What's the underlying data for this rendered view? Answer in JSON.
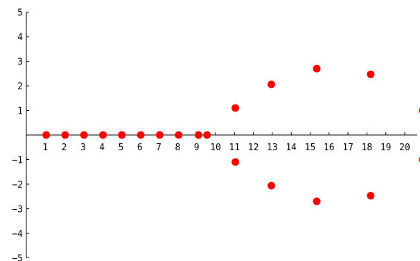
{
  "chart_data": {
    "type": "scatter",
    "title": "",
    "xlabel": "",
    "ylabel": "",
    "xlim": [
      0,
      21.3
    ],
    "ylim": [
      -5,
      5
    ],
    "x_ticks": [
      1,
      2,
      3,
      4,
      5,
      6,
      7,
      8,
      9,
      10,
      11,
      12,
      13,
      14,
      15,
      16,
      17,
      18,
      19,
      20
    ],
    "x_tick_labels": [
      "1",
      "2",
      "3",
      "4",
      "5",
      "6",
      "7",
      "8",
      "9",
      "10",
      "11",
      "12",
      "13",
      "14",
      "15",
      "16",
      "17",
      "18",
      "19",
      "20"
    ],
    "y_ticks": [
      -5,
      -4,
      -3,
      -2,
      -1,
      1,
      2,
      3,
      4,
      5
    ],
    "y_tick_labels": [
      "−5",
      "−4",
      "−3",
      "−2",
      "−1",
      "1",
      "2",
      "3",
      "4",
      "5"
    ],
    "grid": false,
    "marker_color": "#ff0000",
    "series": [
      {
        "points": [
          {
            "x": 1.05,
            "y": 0
          },
          {
            "x": 2.05,
            "y": 0
          },
          {
            "x": 3.05,
            "y": 0
          },
          {
            "x": 4.05,
            "y": 0
          },
          {
            "x": 5.05,
            "y": 0
          },
          {
            "x": 6.05,
            "y": 0
          },
          {
            "x": 7.05,
            "y": 0
          },
          {
            "x": 8.05,
            "y": 0
          },
          {
            "x": 9.1,
            "y": 0
          },
          {
            "x": 9.55,
            "y": 0
          },
          {
            "x": 11.05,
            "y": 1.1
          },
          {
            "x": 11.05,
            "y": -1.1
          },
          {
            "x": 12.95,
            "y": 2.06
          },
          {
            "x": 12.95,
            "y": -2.06
          },
          {
            "x": 15.35,
            "y": 2.7
          },
          {
            "x": 15.35,
            "y": -2.7
          },
          {
            "x": 18.2,
            "y": 2.47
          },
          {
            "x": 18.2,
            "y": -2.47
          },
          {
            "x": 20.95,
            "y": 1.0
          },
          {
            "x": 20.95,
            "y": -1.0
          }
        ]
      }
    ]
  }
}
